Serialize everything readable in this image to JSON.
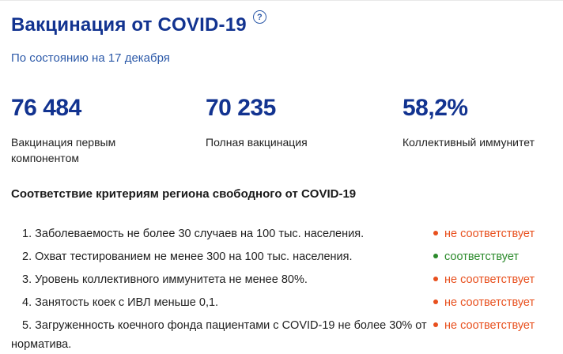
{
  "colors": {
    "navy": "#123390",
    "subtitle-blue": "#2d5aa9",
    "text-dark": "#1f1f1f",
    "status-fail": "#e8501e",
    "status-ok": "#2b8a2b"
  },
  "header": {
    "title": "Вакцинация от COVID-19",
    "help_icon_glyph": "?",
    "as_of": "По состоянию на 17 декабря"
  },
  "stats": [
    {
      "value": "76 484",
      "label": "Вакцинация первым компонентом"
    },
    {
      "value": "70 235",
      "label": "Полная вакцинация"
    },
    {
      "value": "58,2%",
      "label": "Коллективный иммунитет"
    }
  ],
  "criteria": {
    "heading": "Соответствие критериям региона свободного от COVID-19",
    "items": [
      {
        "number": "1.",
        "text": "Заболеваемость не более 30 случаев на 100 тыс. населения.",
        "status": "не соответствует",
        "status_type": "fail"
      },
      {
        "number": "2.",
        "text": "Охват тестированием не менее 300 на 100 тыс. населения.",
        "status": "соответствует",
        "status_type": "ok"
      },
      {
        "number": "3.",
        "text": "Уровень коллективного иммунитета не менее 80%.",
        "status": "не соответствует",
        "status_type": "fail"
      },
      {
        "number": "4.",
        "text": "Занятость коек с ИВЛ меньше 0,1.",
        "status": "не соответствует",
        "status_type": "fail"
      },
      {
        "number": "5.",
        "text": "Загруженность коечного фонда пациентами с COVID-19 не более 30% от норматива.",
        "status": "не соответствует",
        "status_type": "fail"
      }
    ]
  }
}
